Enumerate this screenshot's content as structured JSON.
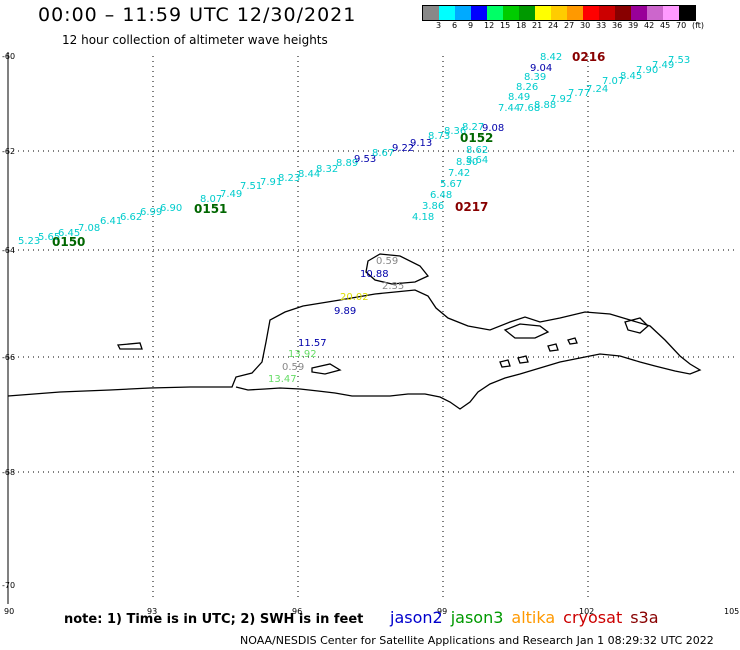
{
  "header": {
    "title": "00:00 – 11:59 UTC 12/30/2021",
    "subtitle": "12 hour collection of altimeter wave heights"
  },
  "legend": {
    "colors": [
      "#888888",
      "#00ffff",
      "#00aaff",
      "#0000ff",
      "#00ff66",
      "#00cc00",
      "#009900",
      "#ffff00",
      "#ffcc00",
      "#ff9900",
      "#ff0000",
      "#cc0000",
      "#880000",
      "#990099",
      "#cc66cc",
      "#ff99ff",
      "#000000"
    ],
    "labels": [
      "3",
      "6",
      "9",
      "12",
      "15",
      "18",
      "21",
      "24",
      "27",
      "30",
      "33",
      "36",
      "39",
      "42",
      "45",
      "70",
      "(ft)"
    ]
  },
  "axes": {
    "lon_labels": [
      "90",
      "93",
      "96",
      "99",
      "102",
      "105"
    ],
    "lat_labels": [
      "-60",
      "-62",
      "-64",
      "-66",
      "-68",
      "-70"
    ]
  },
  "tracks": [
    {
      "name": "0150",
      "color": "#006600",
      "label_color": "#006600"
    },
    {
      "name": "0151",
      "color": "#006600",
      "label_color": "#006600"
    },
    {
      "name": "0152",
      "color": "#006600",
      "label_color": "#006600"
    },
    {
      "name": "0216",
      "color": "#880000",
      "label_color": "#880000"
    },
    {
      "name": "0217",
      "color": "#880000",
      "label_color": "#880000"
    }
  ],
  "observations": [
    {
      "v": "5.23",
      "c": "#00cccc"
    },
    {
      "v": "5.65",
      "c": "#00cccc"
    },
    {
      "v": "6.45",
      "c": "#00cccc"
    },
    {
      "v": "7.08",
      "c": "#00cccc"
    },
    {
      "v": "6.41",
      "c": "#00cccc"
    },
    {
      "v": "6.62",
      "c": "#00cccc"
    },
    {
      "v": "6.99",
      "c": "#00cccc"
    },
    {
      "v": "6.90",
      "c": "#00cccc"
    },
    {
      "v": "8.07",
      "c": "#00cccc"
    },
    {
      "v": "7.49",
      "c": "#00cccc"
    },
    {
      "v": "7.51",
      "c": "#00cccc"
    },
    {
      "v": "7.91",
      "c": "#00cccc"
    },
    {
      "v": "8.23",
      "c": "#00cccc"
    },
    {
      "v": "8.44",
      "c": "#00cccc"
    },
    {
      "v": "8.32",
      "c": "#00cccc"
    },
    {
      "v": "8.89",
      "c": "#00cccc"
    },
    {
      "v": "9.53",
      "c": "#0000aa"
    },
    {
      "v": "8.67",
      "c": "#00cccc"
    },
    {
      "v": "9.22",
      "c": "#0000aa"
    },
    {
      "v": "9.13",
      "c": "#0000aa"
    },
    {
      "v": "8.73",
      "c": "#00cccc"
    },
    {
      "v": "8.36",
      "c": "#00cccc"
    },
    {
      "v": "8.27",
      "c": "#00cccc"
    },
    {
      "v": "9.08",
      "c": "#0000aa"
    },
    {
      "v": "8.62",
      "c": "#00cccc"
    },
    {
      "v": "8.64",
      "c": "#00cccc"
    },
    {
      "v": "8.30",
      "c": "#00cccc"
    },
    {
      "v": "7.42",
      "c": "#00cccc"
    },
    {
      "v": "5.67",
      "c": "#00cccc"
    },
    {
      "v": "6.48",
      "c": "#00cccc"
    },
    {
      "v": "3.86",
      "c": "#00cccc"
    },
    {
      "v": "4.18",
      "c": "#00cccc"
    },
    {
      "v": "8.42",
      "c": "#00cccc"
    },
    {
      "v": "9.04",
      "c": "#0000aa"
    },
    {
      "v": "8.39",
      "c": "#00cccc"
    },
    {
      "v": "8.26",
      "c": "#00cccc"
    },
    {
      "v": "8.49",
      "c": "#00cccc"
    },
    {
      "v": "7.44",
      "c": "#00cccc"
    },
    {
      "v": "7.68",
      "c": "#00cccc"
    },
    {
      "v": "8.88",
      "c": "#00cccc"
    },
    {
      "v": "7.92",
      "c": "#00cccc"
    },
    {
      "v": "7.77",
      "c": "#00cccc"
    },
    {
      "v": "7.24",
      "c": "#00cccc"
    },
    {
      "v": "7.07",
      "c": "#00cccc"
    },
    {
      "v": "8.45",
      "c": "#00cccc"
    },
    {
      "v": "7.90",
      "c": "#00cccc"
    },
    {
      "v": "7.49",
      "c": "#00cccc"
    },
    {
      "v": "7.53",
      "c": "#00cccc"
    },
    {
      "v": "0.59",
      "c": "#888888"
    },
    {
      "v": "10.88",
      "c": "#0000aa"
    },
    {
      "v": "2.35",
      "c": "#888888"
    },
    {
      "v": "20.02",
      "c": "#dddd00"
    },
    {
      "v": "9.89",
      "c": "#0000aa"
    },
    {
      "v": "11.57",
      "c": "#0000aa"
    },
    {
      "v": "13.92",
      "c": "#66dd66"
    },
    {
      "v": "0.59",
      "c": "#888888"
    },
    {
      "v": "13.47",
      "c": "#66dd66"
    }
  ],
  "note": "note:  1) Time is in UTC; 2) SWH is in feet",
  "satellites": [
    {
      "name": "jason2",
      "color": "#0000cc"
    },
    {
      "name": "jason3",
      "color": "#009900"
    },
    {
      "name": "altika",
      "color": "#ff9900"
    },
    {
      "name": "cryosat",
      "color": "#cc0000"
    },
    {
      "name": "s3a",
      "color": "#880000"
    }
  ],
  "footer": "NOAA/NESDIS Center for Satellite Applications and Research    Jan  1 08:29:32 UTC 2022"
}
